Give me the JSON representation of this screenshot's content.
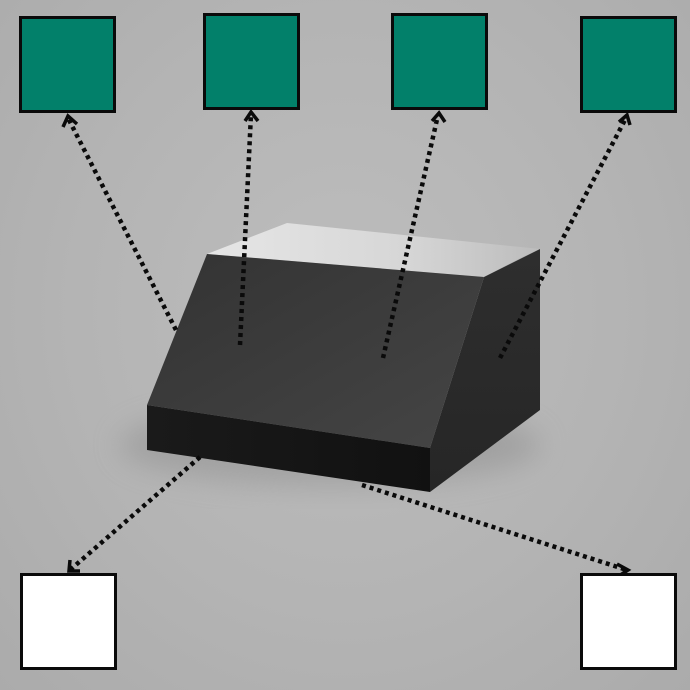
{
  "colors": {
    "background": "#b4b4b4",
    "selected_face_box": "#02806a",
    "unselected_face_box": "#ffffff",
    "box_border": "#0a0a0a",
    "arrow": "#0a0a0a",
    "object_top": "#d8d8d8",
    "object_slope": "#3a3a3a",
    "object_front": "#151515",
    "object_right": "#2a2a2a"
  },
  "object": {
    "shape": "black wedge block with sloped front face",
    "icon": "wedge-block-icon"
  },
  "face_boxes": {
    "top": [
      {
        "id": "face-box-1",
        "state": "filled",
        "color": "#02806a"
      },
      {
        "id": "face-box-2",
        "state": "filled",
        "color": "#02806a"
      },
      {
        "id": "face-box-3",
        "state": "filled",
        "color": "#02806a"
      },
      {
        "id": "face-box-4",
        "state": "filled",
        "color": "#02806a"
      }
    ],
    "bottom": [
      {
        "id": "face-box-5",
        "state": "empty",
        "color": "#ffffff"
      },
      {
        "id": "face-box-6",
        "state": "empty",
        "color": "#ffffff"
      }
    ]
  },
  "arrows": {
    "style": "dotted",
    "count": 6,
    "head": "open-chevron"
  }
}
